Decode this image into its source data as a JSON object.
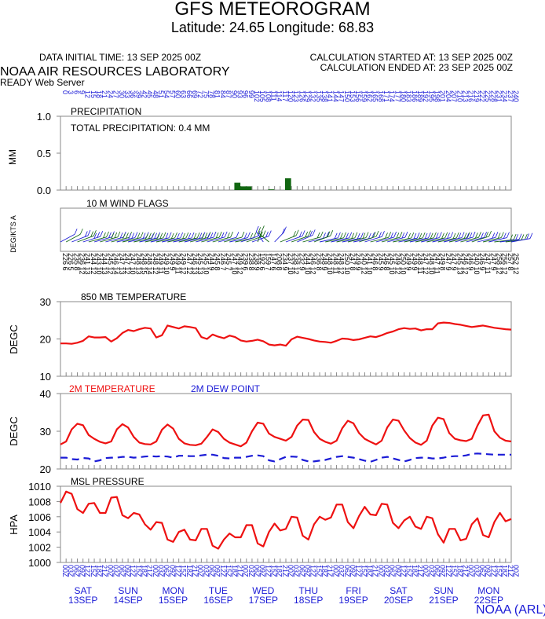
{
  "header": {
    "title": "GFS METEOROGRAM",
    "coords": "Latitude: 24.65 Longitude:  68.83",
    "data_initial": "DATA INITIAL TIME: 13 SEP 2025 00Z",
    "calc_started": "CALCULATION STARTED AT: 13 SEP 2025 00Z",
    "calc_ended": "CALCULATION ENDED AT: 23 SEP 2025 00Z",
    "lab": "NOAA AIR RESOURCES LABORATORY",
    "server": "READY Web Server"
  },
  "footer": {
    "credit": "NOAA (ARL)"
  },
  "colors": {
    "red": "#ee1111",
    "blue": "#1b1bd6",
    "green": "#116611",
    "gray": "#999999"
  },
  "chart_data": [
    {
      "type": "bar",
      "panel_label": "PRECIPITATION",
      "annotation": "TOTAL PRECIPITATION:   0.4 MM",
      "ylabel": "MM",
      "ylim": [
        0,
        1.0
      ],
      "yticks": [
        "1.0",
        "0.5",
        "0.0"
      ],
      "x_hours": [
        0,
        3,
        6,
        9,
        12,
        15,
        18,
        21,
        24,
        27,
        30,
        33,
        36,
        39,
        42,
        45,
        48,
        51,
        54,
        57,
        60,
        63,
        66,
        69,
        72,
        75,
        78,
        81,
        84,
        87,
        90,
        93,
        96,
        99,
        102,
        105,
        108,
        111,
        114,
        117,
        120,
        123,
        126,
        129,
        132,
        135,
        138,
        141,
        144,
        147,
        150,
        153,
        156,
        159,
        162,
        165,
        168,
        171,
        174,
        177,
        180,
        183,
        186,
        189,
        192,
        195,
        198,
        201,
        204,
        207,
        210,
        213,
        216,
        219,
        222,
        225,
        228,
        231,
        234,
        237,
        240
      ],
      "values": [
        0,
        0,
        0,
        0,
        0,
        0,
        0,
        0,
        0,
        0,
        0,
        0,
        0,
        0,
        0,
        0,
        0,
        0,
        0,
        0,
        0,
        0,
        0,
        0,
        0,
        0,
        0,
        0,
        0,
        0,
        0,
        0,
        0,
        0,
        0,
        0,
        0,
        0,
        0,
        0,
        0,
        0,
        0,
        0,
        0,
        0,
        0,
        0,
        0,
        0,
        0,
        0,
        0,
        0,
        0,
        0,
        0,
        0,
        0,
        0,
        0,
        0,
        0,
        0,
        0,
        0,
        0,
        0,
        0,
        0,
        0,
        0,
        0,
        0,
        0,
        0,
        0,
        0,
        0,
        0,
        0
      ],
      "bars": [
        {
          "hour": 93,
          "value": 0.1
        },
        {
          "hour": 96,
          "value": 0.05
        },
        {
          "hour": 99,
          "value": 0.05
        },
        {
          "hour": 111,
          "value": 0.01
        },
        {
          "hour": 120,
          "value": 0.16
        }
      ]
    },
    {
      "type": "wind",
      "panel_label": "10 M  WIND FLAGS",
      "ylabel": "DEG/KTS  A",
      "direction_labels": [
        "226",
        "226",
        "235",
        "236",
        "241",
        "244",
        "243",
        "244",
        "245",
        "246",
        "247",
        "247",
        "247",
        "248",
        "248",
        "248",
        "248",
        "249",
        "249",
        "249",
        "249",
        "249",
        "247",
        "246",
        "245",
        "245",
        "244",
        "245",
        "246",
        "245",
        "247",
        "249",
        "239",
        "238",
        "238",
        "192",
        "159",
        "147",
        "208",
        "234",
        "237",
        "238",
        "232",
        "244",
        "246",
        "236",
        "248",
        "248",
        "248",
        "248",
        "250",
        "247",
        "249",
        "240",
        "241",
        "246",
        "245",
        "246",
        "245",
        "249",
        "250",
        "249",
        "249",
        "248",
        "247",
        "248",
        "247",
        "249",
        "247",
        "247",
        "245",
        "246",
        "246",
        "240",
        "246",
        "247",
        "247",
        "258",
        "256",
        "257",
        "252"
      ],
      "speed_labels": [
        "6",
        "5",
        "8",
        "12",
        "13",
        "12",
        "10",
        "13",
        "12",
        "14",
        "13",
        "12",
        "10",
        "13",
        "15",
        "14",
        "12",
        "11",
        "10",
        "9",
        "11",
        "12",
        "12",
        "13",
        "13",
        "10",
        "9",
        "8",
        "7",
        "7",
        "10",
        "12",
        "6",
        "8",
        "9",
        "6",
        "7",
        "6",
        "8",
        "9",
        "10",
        "12",
        "9",
        "10",
        "12",
        "8",
        "9",
        "10",
        "11",
        "12",
        "10",
        "8",
        "9",
        "12",
        "10",
        "8",
        "9",
        "8",
        "10",
        "12",
        "10",
        "9",
        "9",
        "11",
        "12",
        "10",
        "11",
        "8",
        "9",
        "9",
        "13",
        "12",
        "9",
        "10",
        "9",
        "11",
        "9",
        "12",
        "12",
        "8",
        "12"
      ]
    },
    {
      "type": "line",
      "panel_label": "850 MB  TEMPERATURE",
      "ylabel": "DEGC",
      "ylim": [
        10,
        30
      ],
      "yticks": [
        "30",
        "20",
        "10"
      ],
      "series": [
        {
          "name": "",
          "color": "#ee1111",
          "values": [
            18.8,
            18.8,
            18.7,
            19.0,
            19.5,
            20.7,
            20.4,
            20.4,
            20.5,
            19.3,
            20.2,
            21.6,
            22.4,
            22.1,
            22.6,
            23.0,
            22.8,
            20.4,
            21.0,
            23.6,
            23.2,
            22.8,
            23.4,
            23.2,
            22.9,
            20.5,
            20.0,
            21.2,
            20.6,
            20.2,
            20.9,
            20.5,
            19.6,
            19.3,
            19.5,
            19.8,
            19.4,
            18.5,
            18.3,
            18.5,
            18.2,
            19.9,
            20.6,
            20.3,
            20.0,
            19.6,
            19.3,
            19.2,
            19.0,
            19.5,
            20.1,
            20.0,
            19.7,
            19.9,
            20.3,
            20.7,
            20.5,
            21.0,
            21.6,
            22.0,
            22.6,
            22.9,
            22.7,
            22.8,
            22.3,
            22.6,
            22.6,
            24.2,
            24.4,
            24.3,
            24.0,
            23.8,
            23.5,
            23.2,
            23.4,
            23.6,
            23.3,
            23.0,
            22.8,
            22.6,
            22.5
          ]
        }
      ]
    },
    {
      "type": "line",
      "ylabel": "DEGC",
      "ylim": [
        20,
        40
      ],
      "yticks": [
        "40",
        "30",
        "20"
      ],
      "series": [
        {
          "name": "2M TEMPERATURE",
          "color": "#ee1111",
          "values": [
            26.5,
            27.3,
            30.5,
            32.0,
            31.6,
            29.0,
            28.0,
            27.2,
            26.8,
            27.3,
            30.5,
            31.9,
            31.0,
            28.5,
            27.0,
            26.6,
            26.5,
            27.3,
            30.4,
            31.8,
            30.7,
            28.0,
            26.8,
            26.4,
            26.3,
            26.7,
            28.5,
            30.5,
            29.8,
            28.0,
            27.0,
            26.5,
            26.0,
            27.0,
            30.0,
            32.3,
            32.0,
            29.4,
            28.5,
            28.0,
            27.5,
            28.5,
            31.5,
            33.1,
            33.0,
            29.8,
            28.0,
            27.2,
            26.7,
            27.5,
            30.8,
            32.8,
            32.1,
            29.5,
            28.0,
            27.2,
            26.5,
            27.5,
            31.0,
            33.1,
            32.8,
            30.2,
            28.2,
            27.0,
            26.4,
            27.5,
            31.5,
            33.6,
            33.2,
            29.5,
            28.0,
            27.6,
            27.4,
            28.0,
            31.5,
            34.2,
            34.4,
            30.0,
            28.3,
            27.5,
            27.3
          ]
        },
        {
          "name": "2M  DEW POINT",
          "color": "#1b1bd6",
          "values": [
            23.0,
            23.0,
            22.6,
            22.5,
            22.9,
            22.8,
            22.0,
            22.3,
            22.9,
            23.0,
            23.0,
            23.2,
            23.2,
            23.0,
            23.1,
            23.3,
            23.4,
            23.3,
            23.4,
            23.3,
            23.0,
            23.5,
            23.5,
            23.4,
            23.4,
            23.6,
            23.8,
            23.8,
            23.5,
            22.9,
            22.8,
            23.0,
            23.0,
            23.2,
            23.5,
            23.6,
            23.4,
            22.3,
            22.0,
            22.6,
            23.2,
            23.3,
            23.2,
            22.4,
            22.0,
            22.0,
            22.2,
            22.4,
            22.8,
            23.2,
            23.4,
            23.2,
            23.0,
            22.6,
            22.2,
            21.9,
            22.4,
            23.0,
            23.2,
            22.8,
            22.4,
            22.0,
            22.4,
            22.9,
            23.0,
            23.0,
            22.8,
            22.8,
            23.0,
            23.3,
            23.4,
            23.4,
            23.6,
            24.0,
            24.1,
            24.0,
            23.9,
            23.8,
            23.8,
            23.8,
            23.8
          ]
        }
      ]
    },
    {
      "type": "line",
      "panel_label": "MSL PRESSURE",
      "ylabel": "HPA",
      "ylim": [
        1000,
        1010
      ],
      "yticks": [
        "1010",
        "1008",
        "1006",
        "1004",
        "1002",
        "1000"
      ],
      "series": [
        {
          "name": "",
          "color": "#ee1111",
          "values": [
            1007.8,
            1009.3,
            1009.0,
            1007.0,
            1006.5,
            1007.7,
            1007.8,
            1006.5,
            1006.5,
            1008.5,
            1008.6,
            1006.2,
            1005.8,
            1006.5,
            1006.3,
            1005.0,
            1004.3,
            1005.3,
            1005.2,
            1003.0,
            1002.7,
            1004.0,
            1004.3,
            1003.0,
            1002.9,
            1004.4,
            1004.4,
            1002.2,
            1001.8,
            1003.0,
            1003.8,
            1003.3,
            1003.3,
            1004.9,
            1004.9,
            1002.5,
            1002.1,
            1004.0,
            1005.1,
            1004.2,
            1004.4,
            1006.0,
            1005.9,
            1003.5,
            1003.0,
            1005.0,
            1006.0,
            1005.6,
            1005.9,
            1007.6,
            1007.6,
            1005.3,
            1004.5,
            1006.1,
            1007.3,
            1006.3,
            1006.2,
            1007.7,
            1007.6,
            1005.2,
            1004.5,
            1005.5,
            1006.0,
            1004.7,
            1004.4,
            1006.0,
            1005.8,
            1003.7,
            1002.6,
            1004.4,
            1004.4,
            1002.9,
            1003.1,
            1005.0,
            1005.8,
            1003.6,
            1003.3,
            1005.3,
            1006.5,
            1005.4,
            1005.7
          ]
        }
      ]
    }
  ],
  "x_axis": {
    "hour_labels": [
      "0",
      "3",
      "6",
      "9",
      "12",
      "15",
      "18",
      "21",
      "24",
      "27",
      "30",
      "33",
      "36",
      "39",
      "42",
      "45",
      "48",
      "51",
      "54",
      "57",
      "60",
      "63",
      "66",
      "69",
      "72",
      "75",
      "78",
      "81",
      "84",
      "87",
      "90",
      "93",
      "96",
      "99",
      "102",
      "105",
      "108",
      "111",
      "114",
      "117",
      "120",
      "123",
      "126",
      "129",
      "132",
      "135",
      "138",
      "141",
      "144",
      "147",
      "150",
      "153",
      "156",
      "159",
      "162",
      "165",
      "168",
      "171",
      "174",
      "177",
      "180",
      "183",
      "186",
      "189",
      "192",
      "195",
      "198",
      "201",
      "204",
      "207",
      "210",
      "213",
      "216",
      "219",
      "222",
      "225",
      "228",
      "231",
      "234",
      "237",
      "240"
    ],
    "utc_labels": [
      "00Z",
      "03Z",
      "06Z",
      "09Z",
      "12Z",
      "15Z",
      "18Z",
      "21Z",
      "00Z",
      "03Z",
      "06Z",
      "09Z",
      "12Z",
      "15Z",
      "18Z",
      "21Z",
      "00Z",
      "03Z",
      "06Z",
      "09Z",
      "12Z",
      "15Z",
      "18Z",
      "21Z",
      "00Z",
      "03Z",
      "06Z",
      "09Z",
      "12Z",
      "15Z",
      "18Z",
      "21Z",
      "00Z",
      "03Z",
      "06Z",
      "09Z",
      "12Z",
      "15Z",
      "18Z",
      "21Z",
      "00Z",
      "03Z",
      "06Z",
      "09Z",
      "12Z",
      "15Z",
      "18Z",
      "21Z",
      "00Z",
      "03Z",
      "06Z",
      "09Z",
      "12Z",
      "15Z",
      "18Z",
      "21Z",
      "00Z",
      "03Z",
      "06Z",
      "09Z",
      "12Z",
      "15Z",
      "18Z",
      "21Z",
      "00Z",
      "03Z",
      "06Z",
      "09Z",
      "12Z",
      "15Z",
      "18Z",
      "21Z",
      "00Z",
      "03Z",
      "06Z",
      "09Z",
      "12Z",
      "15Z",
      "18Z",
      "21Z",
      "00Z"
    ],
    "days": [
      {
        "dow": "SAT",
        "date": "13SEP"
      },
      {
        "dow": "SUN",
        "date": "14SEP"
      },
      {
        "dow": "MON",
        "date": "15SEP"
      },
      {
        "dow": "TUE",
        "date": "16SEP"
      },
      {
        "dow": "WED",
        "date": "17SEP"
      },
      {
        "dow": "THU",
        "date": "18SEP"
      },
      {
        "dow": "FRI",
        "date": "19SEP"
      },
      {
        "dow": "SAT",
        "date": "20SEP"
      },
      {
        "dow": "SUN",
        "date": "21SEP"
      },
      {
        "dow": "MON",
        "date": "22SEP"
      }
    ]
  }
}
